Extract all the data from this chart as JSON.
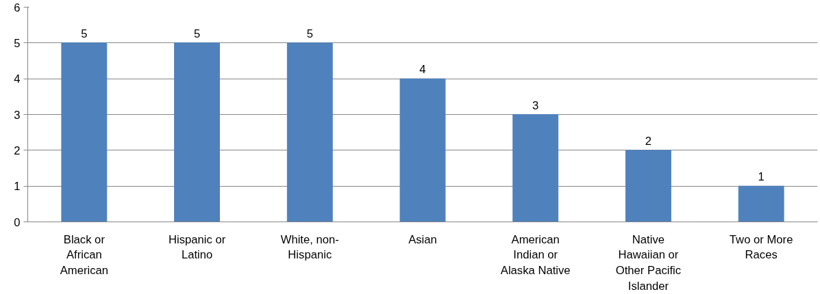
{
  "chart_data": {
    "type": "bar",
    "categories": [
      "Black or African American",
      "Hispanic or Latino",
      "White, non-Hispanic",
      "Asian",
      "American Indian or Alaska Native",
      "Native Hawaiian or Other Pacific Islander",
      "Two or More Races"
    ],
    "values": [
      5,
      5,
      5,
      4,
      3,
      2,
      1
    ],
    "color": "#4f81bd",
    "ylim": [
      0,
      6
    ],
    "yticks": [
      0,
      1,
      2,
      3,
      4,
      5,
      6
    ],
    "grid": "y",
    "data_labels": true
  }
}
